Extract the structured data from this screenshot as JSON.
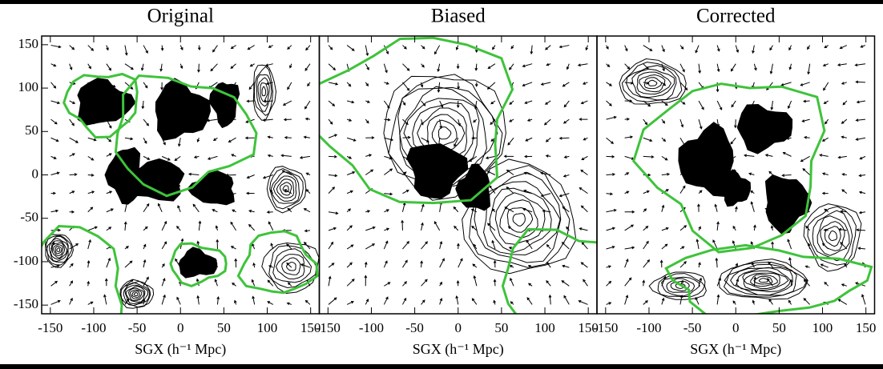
{
  "chart_data": [
    {
      "type": "contour",
      "title": "Original",
      "xlabel": "SGX (h⁻¹ Mpc)",
      "xlim": [
        -160,
        160
      ],
      "xticks": [
        -150,
        -100,
        -50,
        0,
        50,
        100,
        150
      ],
      "ylim": [
        -160,
        160
      ],
      "yticks": [
        150,
        100,
        50,
        0,
        -50,
        -100,
        -150
      ]
    },
    {
      "type": "contour",
      "title": "Biased",
      "xlabel": "SGX (h⁻¹ Mpc)",
      "xlim": [
        -160,
        160
      ],
      "xticks": [
        -150,
        -100,
        -50,
        0,
        50,
        100,
        150
      ],
      "ylim": [
        -160,
        160
      ]
    },
    {
      "type": "contour",
      "title": "Corrected",
      "xlabel": "SGX (h⁻¹ Mpc)",
      "xlim": [
        -160,
        160
      ],
      "xticks": [
        -150,
        -100,
        -50,
        0,
        50,
        100,
        150
      ],
      "ylim": [
        -160,
        160
      ]
    }
  ]
}
